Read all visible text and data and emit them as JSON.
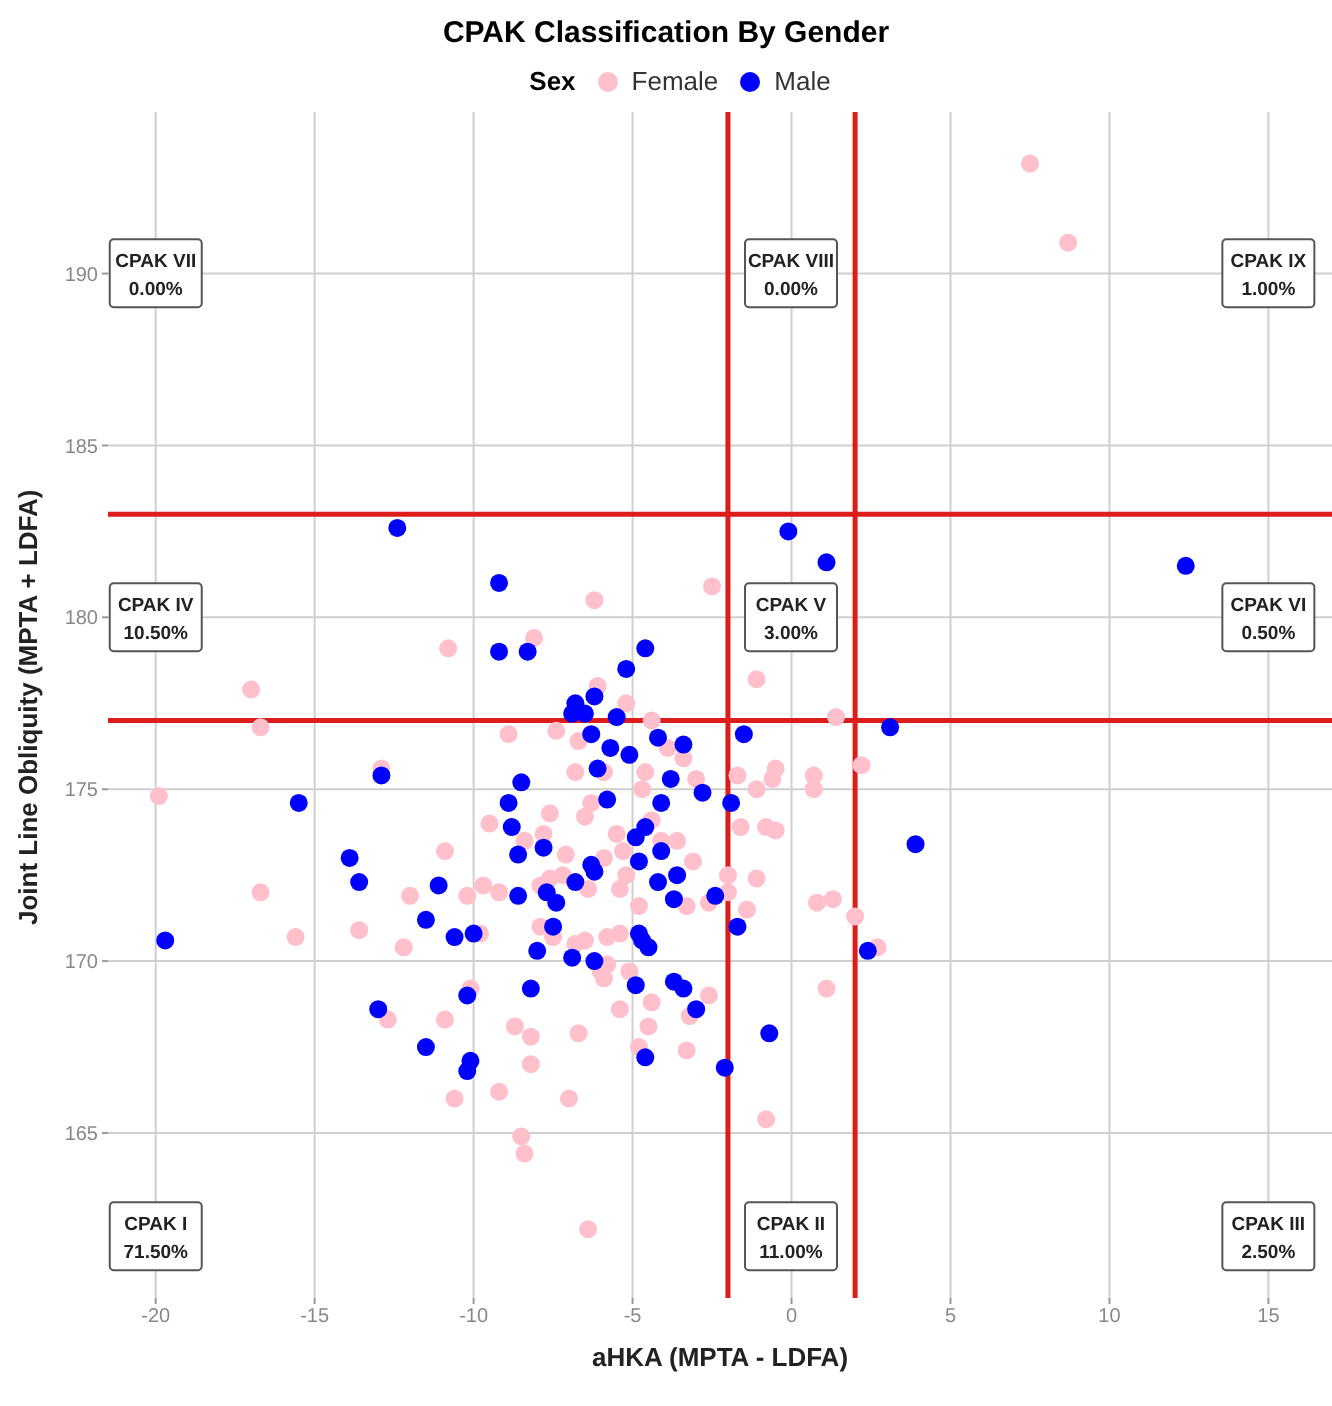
{
  "chart_data": {
    "type": "scatter",
    "title": "CPAK Classification By Gender",
    "xlabel": "aHKA (MPTA - LDFA)",
    "ylabel": "Joint Line Obliquity (MPTA + LDFA)",
    "legend_title": "Sex",
    "legend": "top",
    "grid": true,
    "marker": "circle",
    "xlim": [
      -21.5,
      17
    ],
    "ylim": [
      160.2,
      194.7
    ],
    "xticks": [
      -20,
      -15,
      -10,
      -5,
      0,
      5,
      10,
      15
    ],
    "yticks": [
      165,
      170,
      175,
      180,
      185,
      190
    ],
    "series": [
      {
        "name": "Female",
        "color": "#ffc0cb",
        "x": [
          -10.8,
          -17.0,
          -16.7,
          -12.9,
          -19.9,
          -9.5,
          -10.9,
          -9.7,
          -16.7,
          -12.0,
          -10.2,
          -9.2,
          -13.6,
          -15.6,
          -9.8,
          -12.2,
          -10.1,
          -12.7,
          -10.9,
          -10.6,
          -9.2,
          -6.2,
          -2.5,
          -8.1,
          -1.1,
          -6.1,
          -5.2,
          1.4,
          -8.9,
          -7.4,
          -4.4,
          -6.7,
          -3.9,
          -3.4,
          2.2,
          -0.5,
          -0.6,
          0.7,
          0.7,
          -5.9,
          -6.8,
          -4.6,
          -1.7,
          -3.0,
          -1.1,
          -4.7,
          -6.3,
          -7.6,
          -6.5,
          -4.4,
          -1.6,
          -0.8,
          -0.5,
          -8.4,
          -7.8,
          -5.5,
          -3.6,
          -4.1,
          -5.3,
          -7.1,
          -5.9,
          -3.1,
          -5.2,
          -2.0,
          -1.1,
          -7.6,
          -7.2,
          -7.9,
          -6.4,
          -5.4,
          -4.8,
          -3.3,
          -2.6,
          -2.0,
          -1.4,
          0.8,
          1.3,
          2.0,
          -7.9,
          -6.5,
          -5.8,
          -5.4,
          -6.8,
          -7.5,
          2.7,
          -6.0,
          -5.9,
          -5.8,
          -5.1,
          -2.6,
          1.1,
          -4.4,
          -5.4,
          -3.2,
          -8.7,
          -8.2,
          -6.7,
          -4.5,
          -4.8,
          -3.3,
          -8.2,
          -7.0,
          -0.8,
          -8.5,
          -8.4,
          -6.4,
          7.5,
          8.7
        ],
        "values": [
          179.1,
          177.9,
          176.8,
          175.6,
          174.8,
          174.0,
          173.2,
          172.2,
          172.0,
          171.9,
          171.9,
          172.0,
          170.9,
          170.7,
          170.8,
          170.4,
          169.2,
          168.3,
          168.3,
          166.0,
          166.2,
          180.5,
          180.9,
          179.4,
          178.2,
          178.0,
          177.5,
          177.1,
          176.6,
          176.7,
          177.0,
          176.4,
          176.2,
          175.9,
          175.7,
          175.6,
          175.3,
          175.4,
          175.0,
          175.5,
          175.5,
          175.5,
          175.4,
          175.3,
          175.0,
          175.0,
          174.6,
          174.3,
          174.2,
          174.1,
          173.9,
          173.9,
          173.8,
          173.5,
          173.7,
          173.7,
          173.5,
          173.5,
          173.2,
          173.1,
          173.0,
          172.9,
          172.5,
          172.5,
          172.4,
          172.4,
          172.5,
          172.2,
          172.1,
          172.1,
          171.6,
          171.6,
          171.7,
          172.0,
          171.5,
          171.7,
          171.8,
          171.3,
          171.0,
          170.6,
          170.7,
          170.8,
          170.5,
          170.7,
          170.4,
          169.7,
          169.5,
          169.9,
          169.7,
          169.0,
          169.2,
          168.8,
          168.6,
          168.4,
          168.1,
          167.8,
          167.9,
          168.1,
          167.5,
          167.4,
          167.0,
          166.0,
          165.4,
          164.9,
          164.4,
          162.2,
          193.2,
          190.9
        ]
      },
      {
        "name": "Male",
        "color": "#0000ff",
        "x": [
          -9.2,
          -9.2,
          -12.9,
          -15.5,
          -13.9,
          -13.6,
          -11.1,
          -11.5,
          -10.6,
          -10.0,
          -19.7,
          -10.2,
          -13.0,
          -11.5,
          -10.1,
          -10.2,
          1.1,
          -8.3,
          -4.6,
          -5.2,
          -6.8,
          -6.2,
          -6.9,
          -6.5,
          -5.5,
          -6.3,
          -4.2,
          -1.5,
          3.1,
          -3.4,
          -5.7,
          -5.1,
          -6.1,
          -3.8,
          -8.5,
          -2.8,
          -5.8,
          -4.1,
          -1.9,
          -8.9,
          -8.8,
          -4.6,
          -4.9,
          -7.8,
          -4.1,
          -8.6,
          -4.8,
          -6.3,
          -6.2,
          -3.6,
          -6.8,
          -4.2,
          -7.7,
          -7.4,
          -8.6,
          -3.7,
          -2.4,
          -1.7,
          -7.5,
          -4.8,
          -4.7,
          -8.0,
          -6.9,
          -6.2,
          -4.5,
          2.4,
          -8.2,
          -4.9,
          -3.7,
          -3.4,
          -3.0,
          -0.7,
          -4.6,
          -2.1,
          12.4,
          3.9,
          -12.4,
          -0.1
        ],
        "values": [
          181.0,
          179.0,
          175.4,
          174.6,
          173.0,
          172.3,
          172.2,
          171.2,
          170.7,
          170.8,
          170.6,
          169.0,
          168.6,
          167.5,
          167.1,
          166.8,
          181.6,
          179.0,
          179.1,
          178.5,
          177.5,
          177.7,
          177.2,
          177.2,
          177.1,
          176.6,
          176.5,
          176.6,
          176.8,
          176.3,
          176.2,
          176.0,
          175.6,
          175.3,
          175.2,
          174.9,
          174.7,
          174.6,
          174.6,
          174.6,
          173.9,
          173.9,
          173.6,
          173.3,
          173.2,
          173.1,
          172.9,
          172.8,
          172.6,
          172.5,
          172.3,
          172.3,
          172.0,
          171.7,
          171.9,
          171.8,
          171.9,
          171.0,
          171.0,
          170.8,
          170.6,
          170.3,
          170.1,
          170.0,
          170.4,
          170.3,
          169.2,
          169.3,
          169.4,
          169.2,
          168.6,
          167.9,
          167.2,
          166.9,
          181.5,
          173.4,
          182.6,
          182.5
        ]
      }
    ],
    "ref_lines": [
      {
        "axis": "x",
        "value": -2,
        "color": "#dd1c1c"
      },
      {
        "axis": "x",
        "value": 2,
        "color": "#dd1c1c"
      },
      {
        "axis": "y",
        "value": 177,
        "color": "#dd1c1c"
      },
      {
        "axis": "y",
        "value": 183,
        "color": "#dd1c1c"
      }
    ],
    "annotations": [
      "CPAK VII\n0.00%",
      "CPAK VIII\n0.00%",
      "CPAK IX\n1.00%",
      "CPAK IV\n10.50%",
      "CPAK V\n3.00%",
      "CPAK VI\n0.50%",
      "CPAK I\n71.50%",
      "CPAK II\n11.00%",
      "CPAK III\n2.50%"
    ]
  }
}
